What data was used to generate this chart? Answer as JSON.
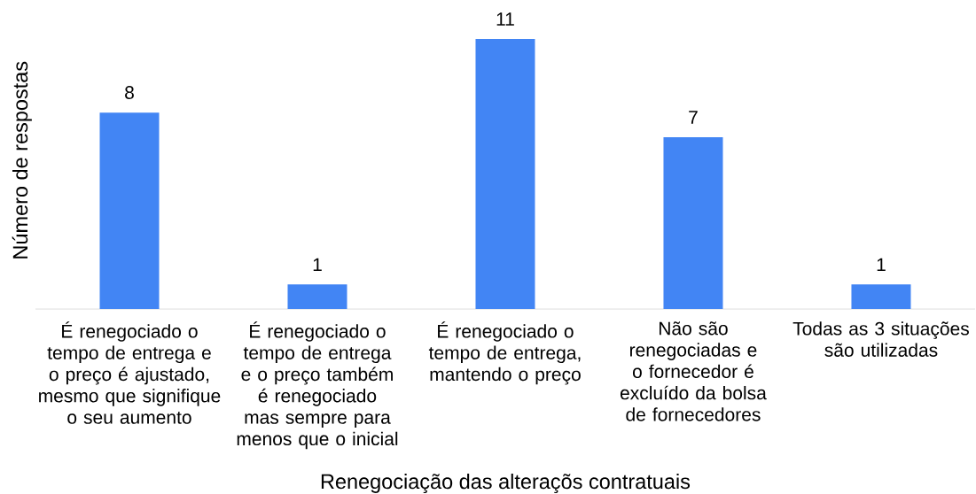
{
  "chart_data": {
    "type": "bar",
    "xlabel": "Renegociação das alteraçõs contratuais",
    "ylabel": "Número de respostas",
    "categories": [
      "É renegociado o tempo de entrega e o preço é ajustado, mesmo que signifique o seu aumento",
      "É renegociado o tempo de entrega e o preço também é renegociado mas sempre para menos que o inicial",
      "É renegociado o tempo de entrega, mantendo o preço",
      "Não são renegociadas e o fornecedor é excluído da bolsa de fornecedores",
      "Todas as 3 situações são utilizadas"
    ],
    "values": [
      8,
      1,
      11,
      7,
      1
    ],
    "color": "#4285f4",
    "data_labels": true
  }
}
